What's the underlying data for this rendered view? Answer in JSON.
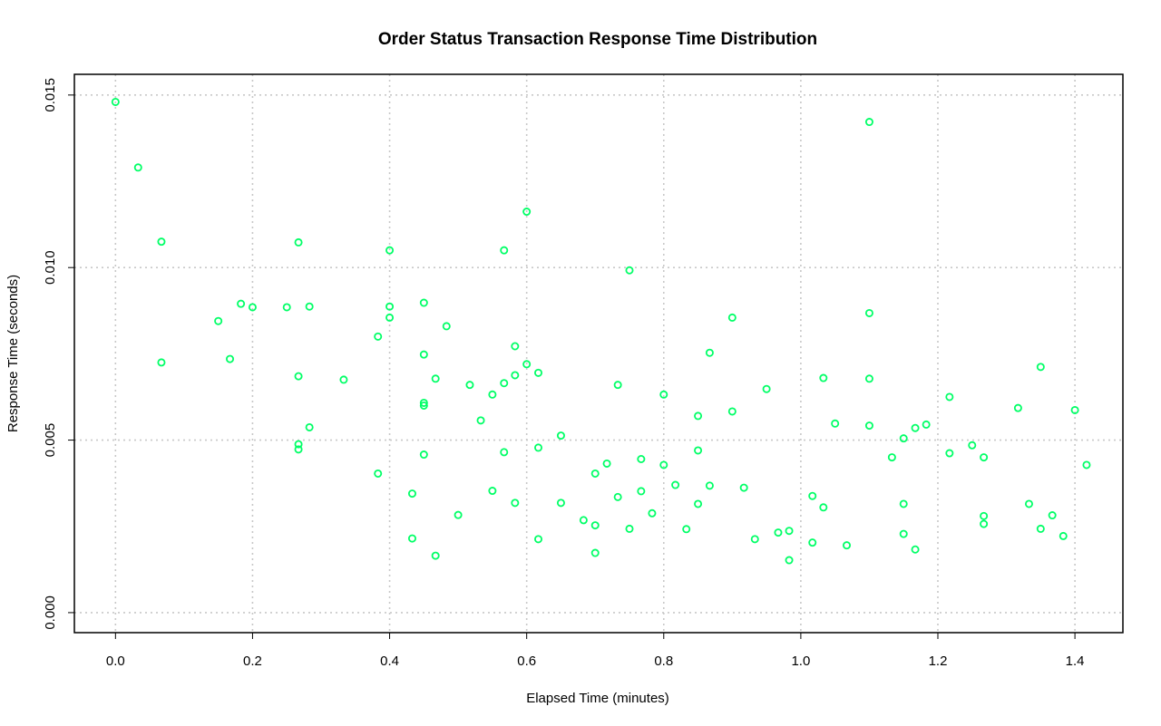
{
  "chart_data": {
    "type": "scatter",
    "title": "Order Status Transaction Response Time Distribution",
    "xlabel": "Elapsed Time (minutes)",
    "ylabel": "Response Time (seconds)",
    "xlim": [
      -0.06,
      1.47
    ],
    "ylim": [
      -0.00058,
      0.0156
    ],
    "x_ticks": [
      0.0,
      0.2,
      0.4,
      0.6,
      0.8,
      1.0,
      1.2,
      1.4
    ],
    "x_tick_labels": [
      "0.0",
      "0.2",
      "0.4",
      "0.6",
      "0.8",
      "1.0",
      "1.2",
      "1.4"
    ],
    "y_ticks": [
      0.0,
      0.005,
      0.01,
      0.015
    ],
    "y_tick_labels": [
      "0.000",
      "0.005",
      "0.010",
      "0.015"
    ],
    "grid": true,
    "marker_color": "#00ff66",
    "series": [
      {
        "x": [
          0.0,
          0.033,
          0.067,
          0.067,
          0.15,
          0.167,
          0.183,
          0.2,
          0.25,
          0.267,
          0.267,
          0.267,
          0.267,
          0.283,
          0.283,
          0.333,
          0.383,
          0.383,
          0.4,
          0.4,
          0.4,
          0.433,
          0.433,
          0.45,
          0.45,
          0.45,
          0.45,
          0.45,
          0.467,
          0.467,
          0.483,
          0.5,
          0.517,
          0.533,
          0.55,
          0.55,
          0.567,
          0.567,
          0.567,
          0.583,
          0.583,
          0.583,
          0.6,
          0.6,
          0.617,
          0.617,
          0.617,
          0.65,
          0.65,
          0.683,
          0.7,
          0.7,
          0.7,
          0.717,
          0.733,
          0.733,
          0.75,
          0.75,
          0.767,
          0.767,
          0.783,
          0.8,
          0.8,
          0.817,
          0.833,
          0.85,
          0.85,
          0.85,
          0.867,
          0.867,
          0.9,
          0.9,
          0.917,
          0.933,
          0.95,
          0.967,
          0.983,
          0.983,
          1.017,
          1.017,
          1.033,
          1.033,
          1.05,
          1.067,
          1.1,
          1.1,
          1.1,
          1.1,
          1.133,
          1.15,
          1.15,
          1.15,
          1.167,
          1.167,
          1.183,
          1.217,
          1.217,
          1.25,
          1.267,
          1.267,
          1.267,
          1.317,
          1.333,
          1.35,
          1.35,
          1.367,
          1.383,
          1.4,
          1.417
        ],
        "y": [
          0.0148,
          0.0129,
          0.01075,
          0.00725,
          0.00845,
          0.00735,
          0.00895,
          0.00885,
          0.00885,
          0.01073,
          0.00685,
          0.00488,
          0.00473,
          0.00887,
          0.00537,
          0.00675,
          0.008,
          0.00403,
          0.0105,
          0.00887,
          0.00855,
          0.00345,
          0.00215,
          0.00898,
          0.00748,
          0.00608,
          0.006,
          0.00458,
          0.00678,
          0.00165,
          0.0083,
          0.00283,
          0.0066,
          0.00557,
          0.00632,
          0.00353,
          0.0105,
          0.00665,
          0.00465,
          0.00772,
          0.00688,
          0.00318,
          0.01162,
          0.0072,
          0.00695,
          0.00478,
          0.00213,
          0.00513,
          0.00318,
          0.00268,
          0.00403,
          0.00253,
          0.00173,
          0.00432,
          0.0066,
          0.00335,
          0.00992,
          0.00243,
          0.00445,
          0.00352,
          0.00288,
          0.00632,
          0.00428,
          0.0037,
          0.00242,
          0.0057,
          0.0047,
          0.00315,
          0.00753,
          0.00368,
          0.00855,
          0.00583,
          0.00362,
          0.00213,
          0.00648,
          0.00232,
          0.00237,
          0.00152,
          0.00338,
          0.00203,
          0.0068,
          0.00305,
          0.00548,
          0.00195,
          0.01422,
          0.00868,
          0.00678,
          0.00542,
          0.0045,
          0.00505,
          0.00315,
          0.00228,
          0.00535,
          0.00183,
          0.00545,
          0.00625,
          0.00462,
          0.00485,
          0.0045,
          0.0028,
          0.00257,
          0.00593,
          0.00315,
          0.00712,
          0.00243,
          0.00282,
          0.00222,
          0.00587,
          0.00428
        ]
      }
    ]
  }
}
